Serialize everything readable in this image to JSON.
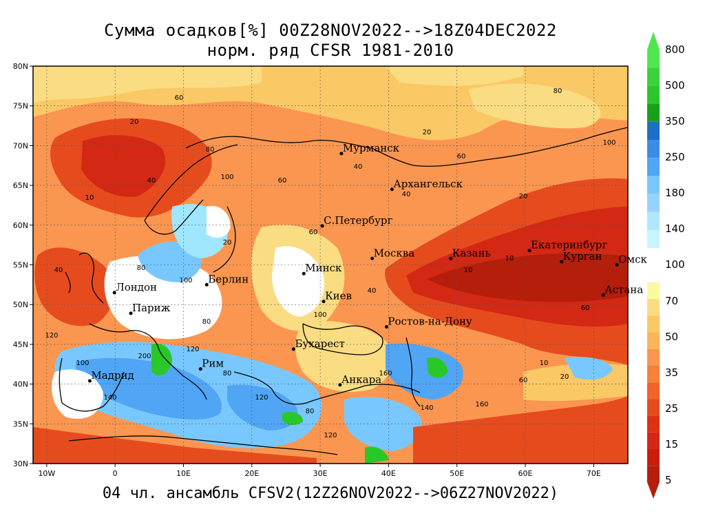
{
  "title_line1": "Сумма осадков[%] 00Z28NOV2022-->18Z04DEC2022",
  "title_line2": "норм. ряд CFSR 1981-2010",
  "footer": "04 чл. ансамбль CFSV2(12Z26NOV2022-->06Z27NOV2022)",
  "lat_ticks": [
    "80N",
    "75N",
    "70N",
    "65N",
    "60N",
    "55N",
    "50N",
    "45N",
    "40N",
    "35N",
    "30N"
  ],
  "lon_ticks": [
    "10W",
    "0",
    "10E",
    "20E",
    "30E",
    "40E",
    "50E",
    "60E",
    "70E"
  ],
  "colorbar": {
    "labels": [
      "800",
      "500",
      "350",
      "250",
      "180",
      "140",
      "100",
      "70",
      "50",
      "35",
      "25",
      "15",
      "5"
    ],
    "colors": [
      "#19a019",
      "#28c828",
      "#50e650",
      "#96f58c",
      "#b4fadc",
      "#a0e6ff",
      "#78c8ff",
      "#50a5f5",
      "#3c8ce6",
      "#1e6ec8",
      "#ffffff",
      "#fafaa0",
      "#fadc82",
      "#fac864",
      "#fa9650",
      "#f57837",
      "#e64b1e",
      "#d22814",
      "#b41e0a"
    ]
  },
  "cities": [
    {
      "name": "Мурманск",
      "lon": 33.1,
      "lat": 69.0
    },
    {
      "name": "Архангельск",
      "lon": 40.5,
      "lat": 64.5
    },
    {
      "name": "С.Петербург",
      "lon": 30.3,
      "lat": 59.9
    },
    {
      "name": "Москва",
      "lon": 37.6,
      "lat": 55.8
    },
    {
      "name": "Казань",
      "lon": 49.1,
      "lat": 55.8
    },
    {
      "name": "Екатеринбург",
      "lon": 60.6,
      "lat": 56.8
    },
    {
      "name": "Курган",
      "lon": 65.3,
      "lat": 55.4
    },
    {
      "name": "Омск",
      "lon": 73.4,
      "lat": 55.0
    },
    {
      "name": "Астана",
      "lon": 71.4,
      "lat": 51.2
    },
    {
      "name": "Минск",
      "lon": 27.6,
      "lat": 53.9
    },
    {
      "name": "Киев",
      "lon": 30.5,
      "lat": 50.4
    },
    {
      "name": "Берлин",
      "lon": 13.4,
      "lat": 52.5
    },
    {
      "name": "Лондон",
      "lon": -0.1,
      "lat": 51.5
    },
    {
      "name": "Париж",
      "lon": 2.3,
      "lat": 48.9
    },
    {
      "name": "Ростов-на-Дону",
      "lon": 39.7,
      "lat": 47.2
    },
    {
      "name": "Бухарест",
      "lon": 26.1,
      "lat": 44.4
    },
    {
      "name": "Рим",
      "lon": 12.5,
      "lat": 41.9
    },
    {
      "name": "Мадрид",
      "lon": -3.7,
      "lat": 40.4
    },
    {
      "name": "Анкара",
      "lon": 32.9,
      "lat": 39.9
    }
  ],
  "contour_labels": [
    "40",
    "20",
    "10",
    "60",
    "80",
    "100",
    "120",
    "140",
    "160",
    "200"
  ],
  "map_extent": {
    "lon_min": -12,
    "lon_max": 75,
    "lat_min": 30,
    "lat_max": 80
  }
}
